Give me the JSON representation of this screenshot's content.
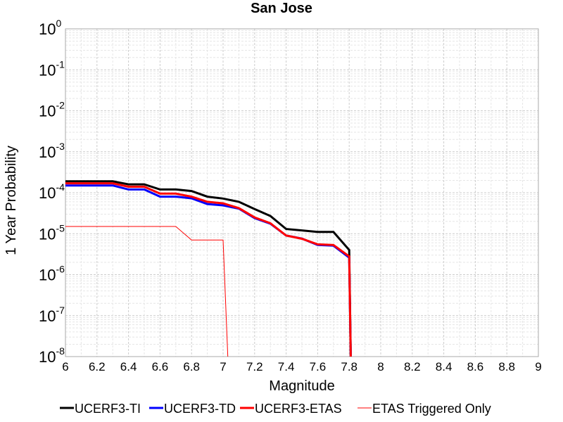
{
  "chart_data": {
    "type": "line",
    "title": "San Jose",
    "xlabel": "Magnitude",
    "ylabel": "1 Year Probability",
    "xlim": [
      6,
      9
    ],
    "ylim": [
      1e-08,
      1
    ],
    "yscale": "log",
    "grid": true,
    "legend_position": "bottom",
    "x_ticks": [
      "6",
      "6.2",
      "6.4",
      "6.6",
      "6.8",
      "7",
      "7.2",
      "7.4",
      "7.6",
      "7.8",
      "8",
      "8.2",
      "8.4",
      "8.6",
      "8.8",
      "9"
    ],
    "y_ticks": [
      {
        "base": "10",
        "exp": "0"
      },
      {
        "base": "10",
        "exp": "-1"
      },
      {
        "base": "10",
        "exp": "-2"
      },
      {
        "base": "10",
        "exp": "-3"
      },
      {
        "base": "10",
        "exp": "-4"
      },
      {
        "base": "10",
        "exp": "-5"
      },
      {
        "base": "10",
        "exp": "-6"
      },
      {
        "base": "10",
        "exp": "-7"
      },
      {
        "base": "10",
        "exp": "-8"
      }
    ],
    "series": [
      {
        "name": "UCERF3-TI",
        "color": "#000000",
        "line_width": 3,
        "x": [
          6.0,
          6.1,
          6.2,
          6.3,
          6.4,
          6.5,
          6.6,
          6.7,
          6.8,
          6.9,
          7.0,
          7.1,
          7.2,
          7.3,
          7.4,
          7.5,
          7.6,
          7.7,
          7.8,
          7.81
        ],
        "y": [
          0.00019,
          0.00019,
          0.00019,
          0.00019,
          0.00016,
          0.00016,
          0.00012,
          0.00012,
          0.00011,
          8e-05,
          7.2e-05,
          6e-05,
          4e-05,
          2.7e-05,
          1.3e-05,
          1.2e-05,
          1.1e-05,
          1.1e-05,
          4e-06,
          1e-08
        ]
      },
      {
        "name": "UCERF3-TD",
        "color": "#0000ff",
        "line_width": 3,
        "x": [
          6.0,
          6.1,
          6.2,
          6.3,
          6.4,
          6.5,
          6.6,
          6.7,
          6.8,
          6.9,
          7.0,
          7.1,
          7.2,
          7.3,
          7.4,
          7.5,
          7.6,
          7.7,
          7.8,
          7.81
        ],
        "y": [
          0.00015,
          0.00015,
          0.00015,
          0.00015,
          0.00012,
          0.00012,
          8e-05,
          8e-05,
          7.3e-05,
          5.3e-05,
          4.9e-05,
          4.1e-05,
          2.4e-05,
          1.75e-05,
          9e-06,
          7.6e-06,
          5.3e-06,
          5.1e-06,
          2.6e-06,
          1e-08
        ]
      },
      {
        "name": "UCERF3-ETAS",
        "color": "#ff0000",
        "line_width": 3,
        "x": [
          6.0,
          6.1,
          6.2,
          6.3,
          6.4,
          6.5,
          6.6,
          6.7,
          6.8,
          6.9,
          7.0,
          7.1,
          7.2,
          7.3,
          7.4,
          7.5,
          7.6,
          7.7,
          7.8,
          7.81
        ],
        "y": [
          0.00017,
          0.00017,
          0.00017,
          0.00017,
          0.00014,
          0.00014,
          9.5e-05,
          9.5e-05,
          8e-05,
          6e-05,
          5.5e-05,
          4.2e-05,
          2.5e-05,
          1.8e-05,
          9e-06,
          7.5e-06,
          5.5e-06,
          5.3e-06,
          2.8e-06,
          1e-08
        ]
      },
      {
        "name": "ETAS Triggered Only",
        "color": "#ff0000",
        "line_width": 1,
        "x": [
          6.0,
          6.1,
          6.2,
          6.3,
          6.4,
          6.5,
          6.6,
          6.7,
          6.8,
          6.9,
          7.0,
          7.03
        ],
        "y": [
          1.5e-05,
          1.5e-05,
          1.5e-05,
          1.5e-05,
          1.5e-05,
          1.5e-05,
          1.5e-05,
          1.5e-05,
          7e-06,
          7e-06,
          7e-06,
          1e-08
        ]
      }
    ]
  }
}
